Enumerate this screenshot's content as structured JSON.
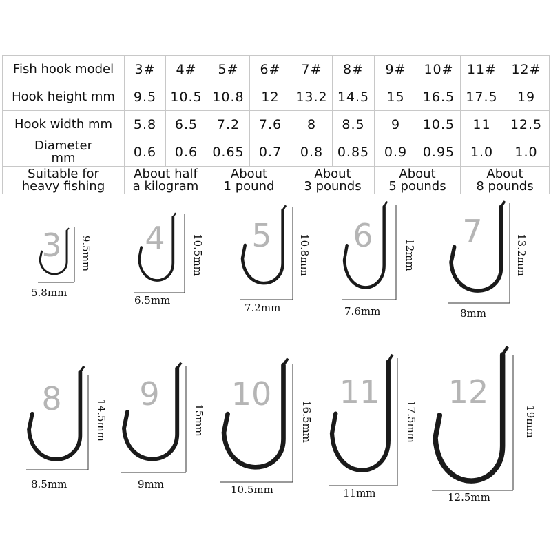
{
  "table": {
    "rows": [
      {
        "label": "Fish hook model",
        "values": [
          "3#",
          "4#",
          "5#",
          "6#",
          "7#",
          "8#",
          "9#",
          "10#",
          "11#",
          "12#"
        ]
      },
      {
        "label": "Hook height mm",
        "values": [
          "9.5",
          "10.5",
          "10.8",
          "12",
          "13.2",
          "14.5",
          "15",
          "16.5",
          "17.5",
          "19"
        ]
      },
      {
        "label": "Hook width mm",
        "values": [
          "5.8",
          "6.5",
          "7.2",
          "7.6",
          "8",
          "8.5",
          "9",
          "10.5",
          "11",
          "12.5"
        ]
      },
      {
        "label": [
          "Diameter",
          "mm"
        ],
        "values": [
          "0.6",
          "0.6",
          "0.65",
          "0.7",
          "0.8",
          "0.85",
          "0.9",
          "0.95",
          "1.0",
          "1.0"
        ]
      }
    ],
    "suitable": {
      "label": [
        "Suitable for",
        "heavy fishing"
      ],
      "groups": [
        [
          "About half",
          "a kilogram"
        ],
        [
          "About",
          "1 pound"
        ],
        [
          "About",
          "3 pounds"
        ],
        [
          "About",
          "5 pounds"
        ],
        [
          "About",
          "8 pounds"
        ]
      ]
    }
  },
  "hooks": [
    {
      "number": "3",
      "height": "9.5mm",
      "width": "5.8mm"
    },
    {
      "number": "4",
      "height": "10.5mm",
      "width": "6.5mm"
    },
    {
      "number": "5",
      "height": "10.8mm",
      "width": "7.2mm"
    },
    {
      "number": "6",
      "height": "12mm",
      "width": "7.6mm"
    },
    {
      "number": "7",
      "height": "13.2mm",
      "width": "8mm"
    },
    {
      "number": "8",
      "height": "14.5mm",
      "width": "8.5mm"
    },
    {
      "number": "9",
      "height": "15mm",
      "width": "9mm"
    },
    {
      "number": "10",
      "height": "16.5mm",
      "width": "10.5mm"
    },
    {
      "number": "11",
      "height": "17.5mm",
      "width": "11mm"
    },
    {
      "number": "12",
      "height": "19mm",
      "width": "12.5mm"
    }
  ],
  "colors": {
    "hook": "#1a1a1a",
    "number": "#b5b5b5",
    "grid": "#c8c8c8"
  }
}
